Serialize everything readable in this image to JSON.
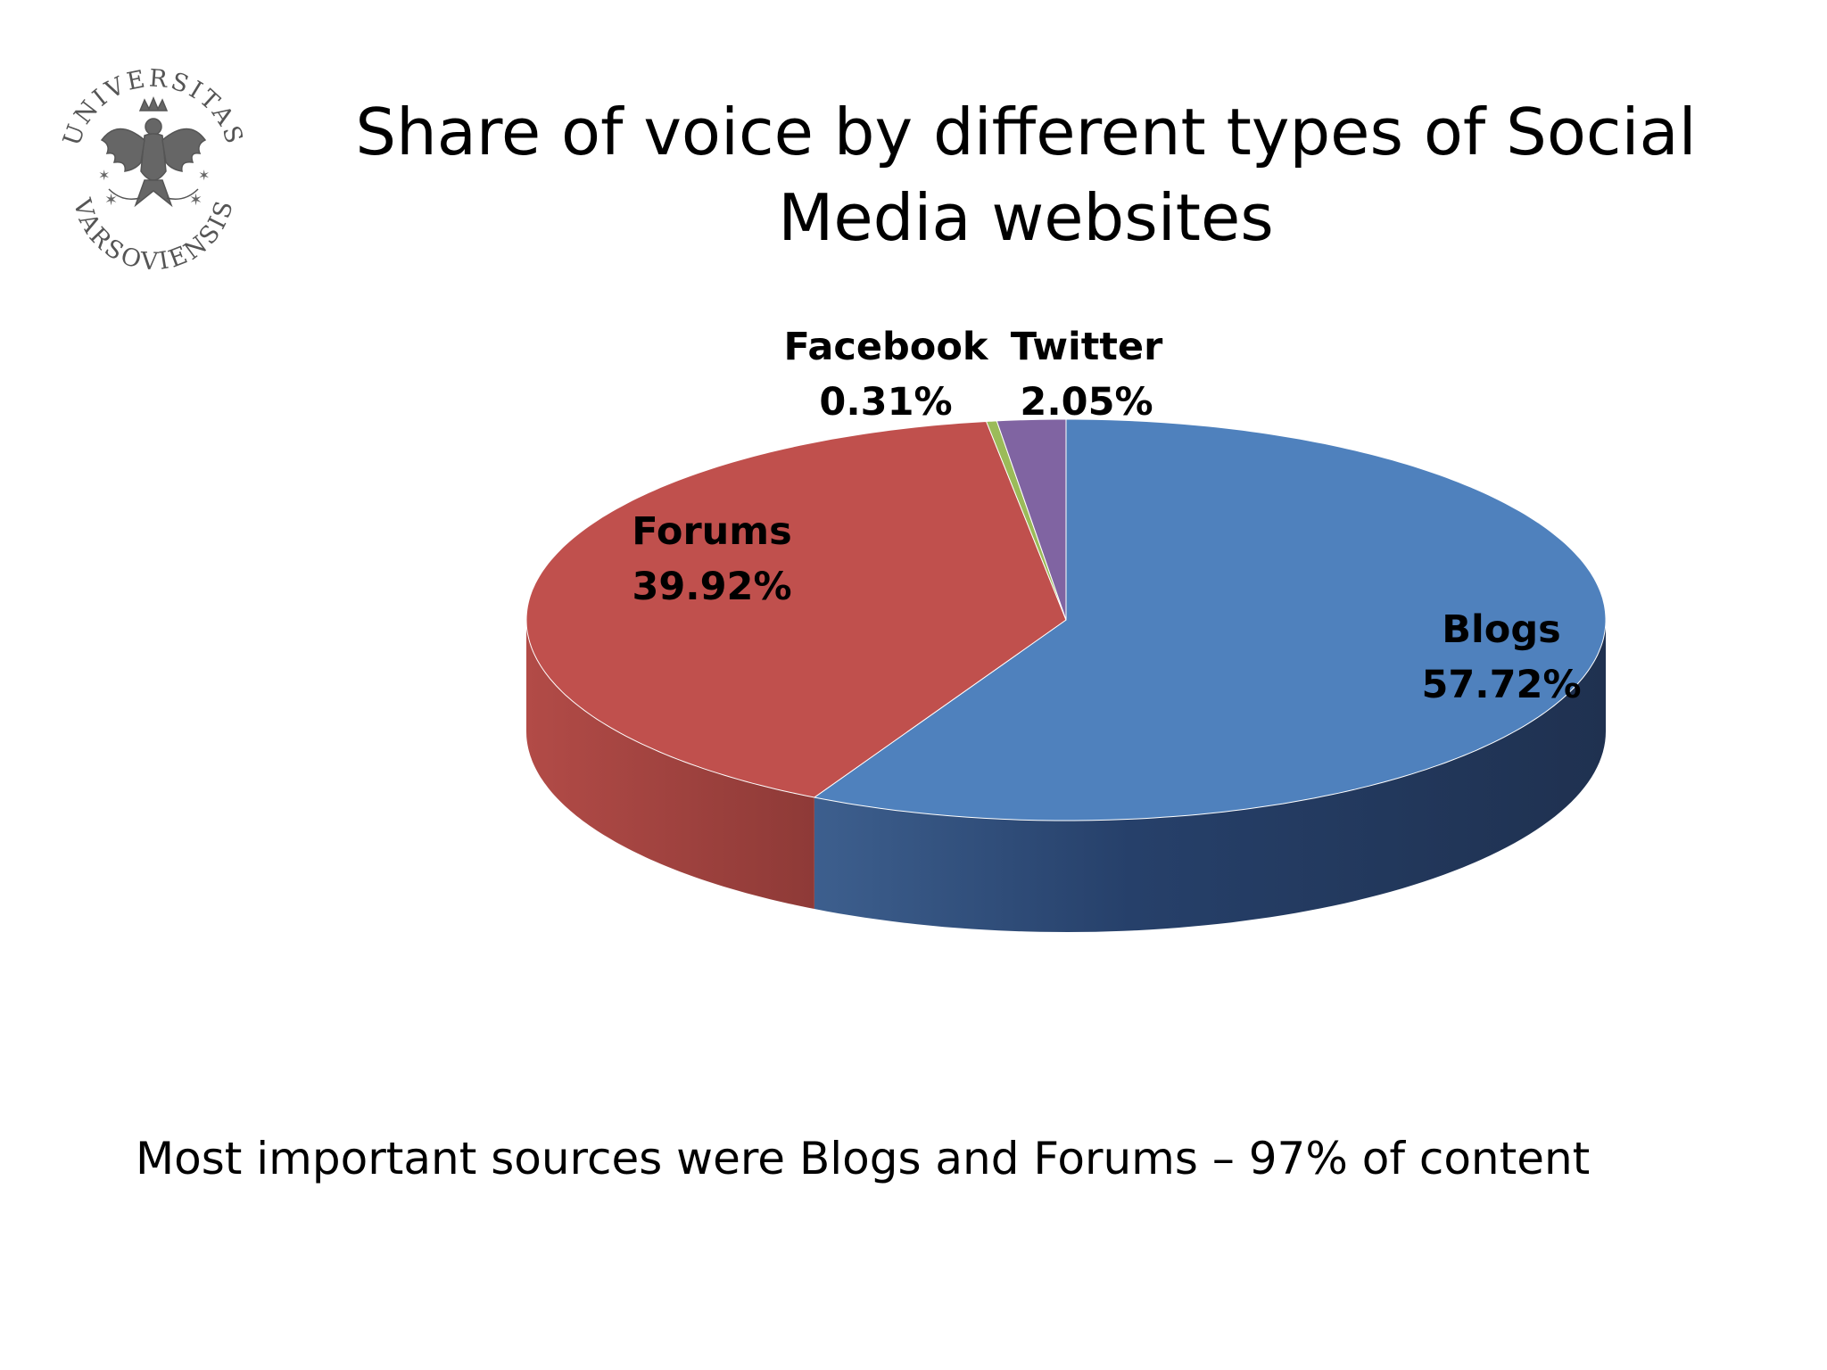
{
  "slide": {
    "footnote": "Most important sources were Blogs and Forums – 97% of content"
  },
  "logo": {
    "top_text": "UNIVERSITAS",
    "bottom_text": "VARSOVIENSIS",
    "icon": "eagle-crest-icon"
  },
  "chart_data": {
    "type": "pie",
    "title": "Share of voice by different types of Social Media websites",
    "three_d": true,
    "slices": [
      {
        "label": "Blogs",
        "value": 57.72,
        "value_label": "57.72%",
        "color": "#4F81BD"
      },
      {
        "label": "Forums",
        "value": 39.92,
        "value_label": "39.92%",
        "color": "#C0504D"
      },
      {
        "label": "Facebook",
        "value": 0.31,
        "value_label": "0.31%",
        "color": "#9BBB59"
      },
      {
        "label": "Twitter",
        "value": 2.05,
        "value_label": "2.05%",
        "color": "#8064A2"
      }
    ]
  }
}
